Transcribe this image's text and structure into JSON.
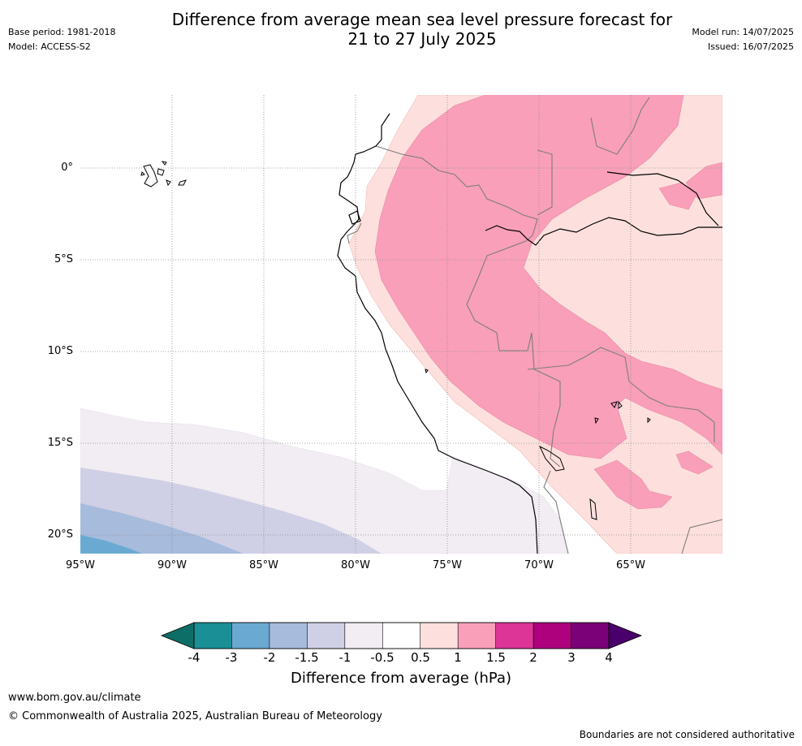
{
  "title": {
    "line1": "Difference from average mean sea level pressure forecast for",
    "line2": "21 to 27 July 2025"
  },
  "meta_left": {
    "base_period": "Base period: 1981-2018",
    "model": "Model: ACCESS-S2"
  },
  "meta_right": {
    "model_run": "Model run: 14/07/2025",
    "issued": "Issued: 16/07/2025"
  },
  "map": {
    "lat_labels": [
      "0°",
      "5°S",
      "10°S",
      "15°S",
      "20°S"
    ],
    "lon_labels": [
      "95°W",
      "90°W",
      "85°W",
      "80°W",
      "75°W",
      "70°W",
      "65°W"
    ]
  },
  "colorbar": {
    "ticks": [
      "-4",
      "-3",
      "-2",
      "-1.5",
      "-1",
      "-0.5",
      "0.5",
      "1",
      "1.5",
      "2",
      "3",
      "4"
    ],
    "colors": [
      "#1a8f95",
      "#6aaad2",
      "#a7bbdc",
      "#cfd0e5",
      "#f2ecf3",
      "#ffffff",
      "#fde0dd",
      "#f99fb9",
      "#dd3497",
      "#ae017e",
      "#7a0177"
    ],
    "under_color": "#0c6e66",
    "over_color": "#49006a",
    "label": "Difference from average (hPa)"
  },
  "footer": {
    "url": "www.bom.gov.au/climate",
    "copyright": "© Commonwealth of Australia 2025, Australian Bureau of Meteorology",
    "note": "Boundaries are not considered authoritative"
  }
}
